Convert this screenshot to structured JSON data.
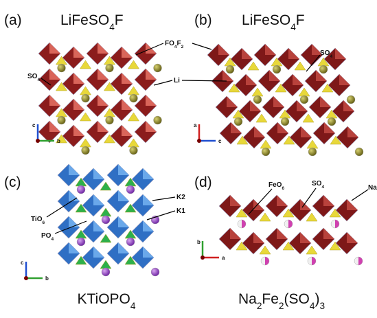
{
  "panels": [
    {
      "label": "(a)",
      "title": [
        {
          "text": "LiFeSO"
        },
        {
          "text": "4",
          "sub": true
        },
        {
          "text": "F"
        }
      ],
      "annotations": [
        {
          "parts": [
            {
              "text": "FO"
            },
            {
              "text": "4",
              "sub": true
            },
            {
              "text": "F"
            },
            {
              "text": "2",
              "sub": true
            }
          ]
        },
        {
          "parts": [
            {
              "text": "SO"
            },
            {
              "text": "4",
              "sub": true
            }
          ]
        },
        {
          "parts": [
            {
              "text": "Li"
            }
          ]
        }
      ],
      "axes": [
        "c",
        "b"
      ]
    },
    {
      "label": "(b)",
      "title": [
        {
          "text": "LiFeSO"
        },
        {
          "text": "4",
          "sub": true
        },
        {
          "text": "F"
        }
      ],
      "annotations": [
        {
          "parts": [
            {
              "text": "SO"
            },
            {
              "text": "4",
              "sub": true
            }
          ]
        }
      ],
      "axes": [
        "a",
        "c"
      ]
    },
    {
      "label": "(c)",
      "title": [
        {
          "text": "KTiOPO"
        },
        {
          "text": "4",
          "sub": true
        }
      ],
      "annotations": [
        {
          "parts": [
            {
              "text": "K2"
            }
          ]
        },
        {
          "parts": [
            {
              "text": "K1"
            }
          ]
        },
        {
          "parts": [
            {
              "text": "TiO"
            },
            {
              "text": "6",
              "sub": true
            }
          ]
        },
        {
          "parts": [
            {
              "text": "PO"
            },
            {
              "text": "4",
              "sub": true
            }
          ]
        }
      ],
      "axes": [
        "c",
        "b"
      ]
    },
    {
      "label": "(d)",
      "title": [
        {
          "text": "Na"
        },
        {
          "text": "2",
          "sub": true
        },
        {
          "text": "Fe"
        },
        {
          "text": "2",
          "sub": true
        },
        {
          "text": "(SO"
        },
        {
          "text": "4",
          "sub": true
        },
        {
          "text": ")"
        },
        {
          "text": "3",
          "sub": true
        }
      ],
      "annotations": [
        {
          "parts": [
            {
              "text": "FeO"
            },
            {
              "text": "6",
              "sub": true
            }
          ]
        },
        {
          "parts": [
            {
              "text": "SO"
            },
            {
              "text": "4",
              "sub": true
            }
          ]
        },
        {
          "parts": [
            {
              "text": "Na"
            }
          ]
        }
      ],
      "axes": [
        "b",
        "a"
      ]
    }
  ]
}
